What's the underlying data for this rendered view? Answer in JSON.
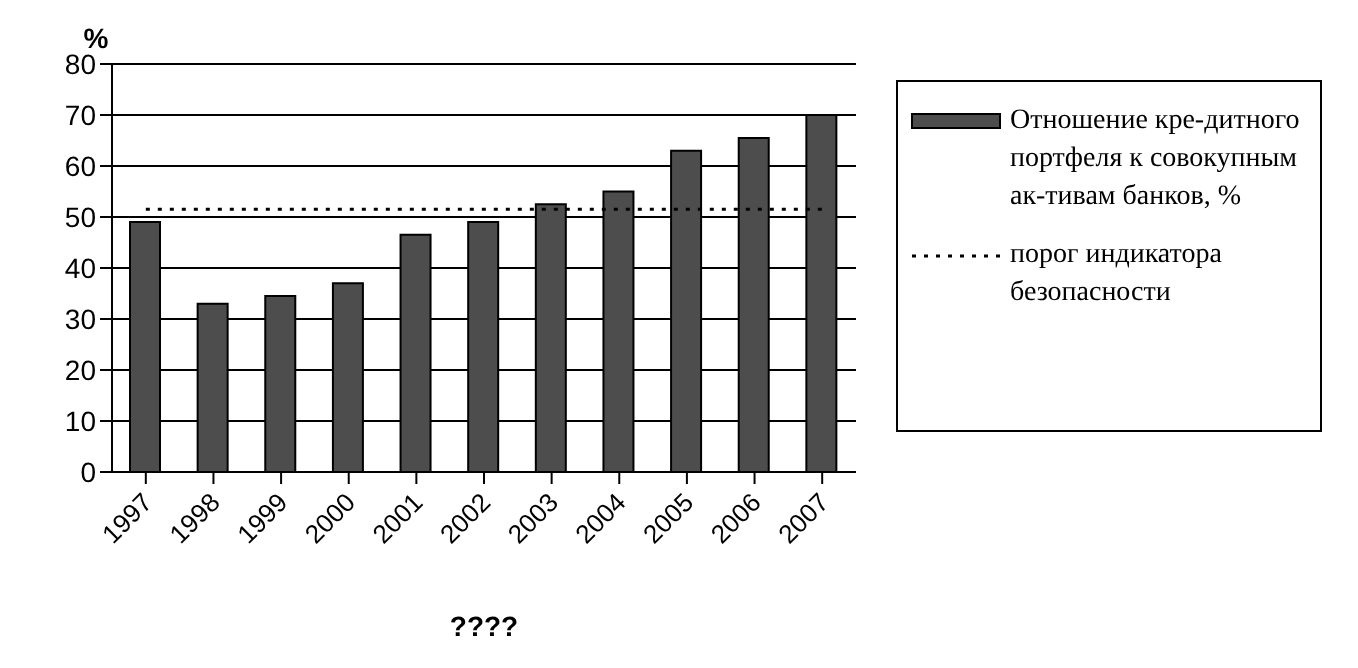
{
  "chart_data": {
    "type": "bar",
    "xlabel": "????",
    "ylabel": "%",
    "categories": [
      "1997",
      "1998",
      "1999",
      "2000",
      "2001",
      "2002",
      "2003",
      "2004",
      "2005",
      "2006",
      "2007"
    ],
    "series": [
      {
        "name": "Отношение кре-дитного портфеля к совокупным ак-тивам банков, %",
        "color": "#4d4d4d",
        "values": [
          49,
          33,
          34.5,
          37,
          46.5,
          49,
          52.5,
          55,
          63,
          65.5,
          70
        ]
      },
      {
        "type": "line",
        "name": "порог индикатора безопасности",
        "color": "#000000",
        "line_style": "dotted",
        "values": [
          51.5,
          51.5,
          51.5,
          51.5,
          51.5,
          51.5,
          51.5,
          51.5,
          51.5,
          51.5,
          51.5
        ]
      }
    ],
    "ylim": [
      0,
      80
    ],
    "yticks": [
      0,
      10,
      20,
      30,
      40,
      50,
      60,
      70,
      80
    ],
    "grid": "y",
    "legend": "right"
  }
}
